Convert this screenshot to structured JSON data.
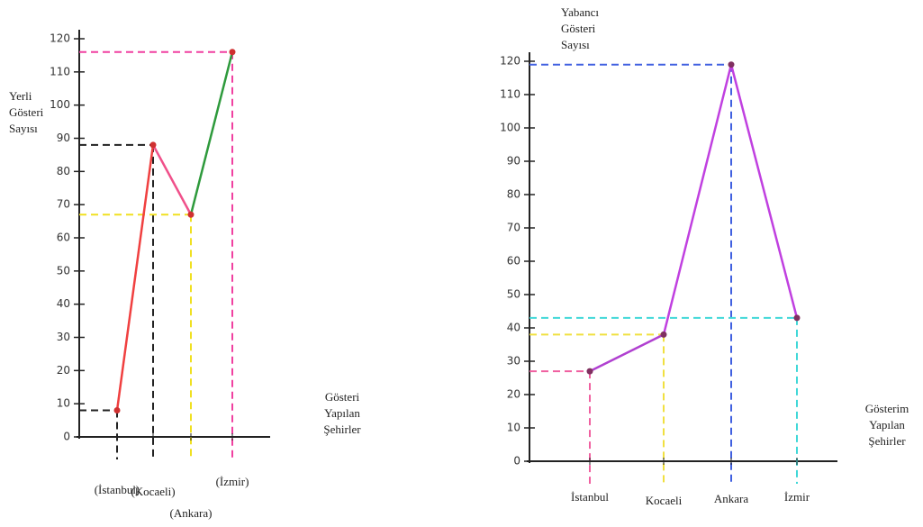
{
  "chart_data": [
    {
      "type": "line",
      "y_label": [
        "Yerli",
        "Gösteri",
        "Sayısı"
      ],
      "x_label": [
        "Gösteri",
        "Yapılan",
        "Şehirler"
      ],
      "categories": [
        "(İstanbul)",
        "(Kocaeli)",
        "(Ankara)",
        "(İzmir)"
      ],
      "values": [
        8,
        88,
        67,
        116
      ],
      "segment_colors": [
        "#f04040",
        "#f0508a",
        "#2e9a3c"
      ],
      "guide_colors": [
        "#222222",
        "#222222",
        "#f0e020",
        "#f040a0"
      ],
      "point_color": "#d03030",
      "ylim": [
        0,
        120
      ],
      "yticks": [
        0,
        10,
        20,
        30,
        40,
        50,
        60,
        70,
        80,
        90,
        100,
        110,
        120
      ]
    },
    {
      "type": "line",
      "y_label": [
        "Yabancı",
        "Gösteri",
        "Sayısı"
      ],
      "x_label": [
        "Gösterim",
        "Yapılan",
        "Şehirler"
      ],
      "categories": [
        "İstanbul",
        "Kocaeli",
        "Ankara",
        "İzmir"
      ],
      "values": [
        27,
        38,
        119,
        43
      ],
      "segment_colors": [
        "#b040d0",
        "#c040e0",
        "#c040e0"
      ],
      "guide_colors": [
        "#f060a0",
        "#f0e040",
        "#4060e0",
        "#40d8d8"
      ],
      "point_color": "#803060",
      "ylim": [
        0,
        120
      ],
      "yticks": [
        0,
        10,
        20,
        30,
        40,
        50,
        60,
        70,
        80,
        90,
        100,
        110,
        120
      ]
    }
  ]
}
